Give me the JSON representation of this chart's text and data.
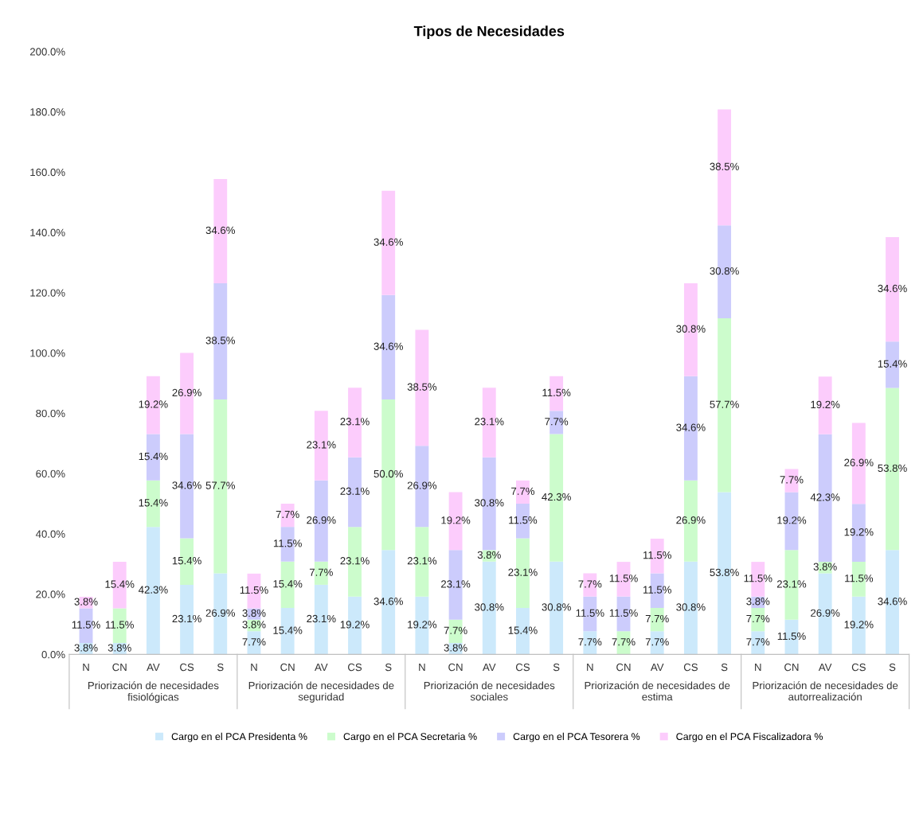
{
  "chart_data": {
    "type": "bar",
    "title": "Tipos de Necesidades",
    "stacked": true,
    "categories": [
      "N",
      "CN",
      "AV",
      "CS",
      "S",
      "N",
      "CN",
      "AV",
      "CS",
      "S",
      "N",
      "CN",
      "AV",
      "CS",
      "S",
      "N",
      "CN",
      "AV",
      "CS",
      "S",
      "N",
      "CN",
      "AV",
      "CS",
      "S"
    ],
    "annotations": [
      "Priorización de necesidades fisiológicas",
      "Priorización de necesidades de seguridad",
      "Priorización de necesidades sociales",
      "Priorización de necesidades de estima",
      "Priorización de necesidades de autorrealización"
    ],
    "series": [
      {
        "name": "Cargo en el PCA Presidenta %",
        "color": "#cce9fb",
        "values": [
          3.8,
          3.8,
          42.3,
          23.1,
          26.9,
          7.7,
          15.4,
          23.1,
          19.2,
          34.6,
          19.2,
          3.8,
          30.8,
          15.4,
          30.8,
          7.7,
          null,
          7.7,
          30.8,
          53.8,
          7.7,
          11.5,
          26.9,
          19.2,
          34.6
        ],
        "value_labels": [
          "3.8%",
          "3.8%",
          "42.3%",
          "23.1%",
          "26.9%",
          "7.7%",
          "15.4%",
          "23.1%",
          "19.2%",
          "34.6%",
          "19.2%",
          "3.8%",
          "30.8%",
          "15.4%",
          "30.8%",
          "7.7%",
          null,
          "7.7%",
          "30.8%",
          "53.8%",
          "7.7%",
          "11.5%",
          "26.9%",
          "19.2%",
          "34.6%"
        ]
      },
      {
        "name": "Cargo en el PCA Secretaria %",
        "color": "#ccfccc",
        "values": [
          null,
          11.5,
          15.4,
          15.4,
          57.7,
          3.8,
          15.4,
          7.7,
          23.1,
          50.0,
          23.1,
          7.7,
          3.8,
          23.1,
          42.3,
          null,
          7.7,
          7.7,
          26.9,
          57.7,
          7.7,
          23.1,
          3.8,
          11.5,
          53.8
        ],
        "value_labels": [
          null,
          "11.5%",
          "15.4%",
          "15.4%",
          "57.7%",
          "3.8%",
          "15.4%",
          "7.7%",
          "23.1%",
          "50.0%",
          "23.1%",
          "7.7%",
          "3.8%",
          "23.1%",
          "42.3%",
          null,
          "7.7%",
          "7.7%",
          "26.9%",
          "57.7%",
          "7.7%",
          "23.1%",
          "3.8%",
          "11.5%",
          "53.8%"
        ]
      },
      {
        "name": "Cargo en el PCA Tesorera %",
        "color": "#ccccfc",
        "values": [
          11.5,
          null,
          15.4,
          34.6,
          38.5,
          3.8,
          11.5,
          26.9,
          23.1,
          34.6,
          26.9,
          23.1,
          30.8,
          11.5,
          7.7,
          11.5,
          11.5,
          11.5,
          34.6,
          30.8,
          3.8,
          19.2,
          42.3,
          19.2,
          15.4
        ],
        "value_labels": [
          "11.5%",
          null,
          "15.4%",
          "34.6%",
          "38.5%",
          "3.8%",
          "11.5%",
          "26.9%",
          "23.1%",
          "34.6%",
          "26.9%",
          "23.1%",
          "30.8%",
          "11.5%",
          "7.7%",
          "11.5%",
          "11.5%",
          "11.5%",
          "34.6%",
          "30.8%",
          "3.8%",
          "19.2%",
          "42.3%",
          "19.2%",
          "15.4%"
        ]
      },
      {
        "name": "Cargo en el PCA Fiscalizadora %",
        "color": "#fcccfc",
        "values": [
          3.8,
          15.4,
          19.2,
          26.9,
          34.6,
          11.5,
          7.7,
          23.1,
          23.1,
          34.6,
          38.5,
          19.2,
          23.1,
          7.7,
          11.5,
          7.7,
          11.5,
          11.5,
          30.8,
          38.5,
          11.5,
          7.7,
          19.2,
          26.9,
          34.6
        ],
        "value_labels": [
          "3.8%",
          "15.4%",
          "19.2%",
          "26.9%",
          "34.6%",
          "11.5%",
          "7.7%",
          "23.1%",
          "23.1%",
          "34.6%",
          "38.5%",
          "19.2%",
          "23.1%",
          "7.7%",
          "11.5%",
          "7.7%",
          "11.5%",
          "11.5%",
          "30.8%",
          "38.5%",
          "11.5%",
          "7.7%",
          "19.2%",
          "26.9%",
          "34.6%"
        ]
      }
    ],
    "ylim": [
      0,
      200
    ],
    "yticks": [
      {
        "value": 0,
        "label": "0.0%"
      },
      {
        "value": 20,
        "label": "20.0%"
      },
      {
        "value": 40,
        "label": "40.0%"
      },
      {
        "value": 60,
        "label": "60.0%"
      },
      {
        "value": 80,
        "label": "80.0%"
      },
      {
        "value": 100,
        "label": "100.0%"
      },
      {
        "value": 120,
        "label": "120.0%"
      },
      {
        "value": 140,
        "label": "140.0%"
      },
      {
        "value": 160,
        "label": "160.0%"
      },
      {
        "value": 180,
        "label": "180.0%"
      },
      {
        "value": 200,
        "label": "200.0%"
      }
    ],
    "grid": false,
    "legend": "bottom"
  }
}
